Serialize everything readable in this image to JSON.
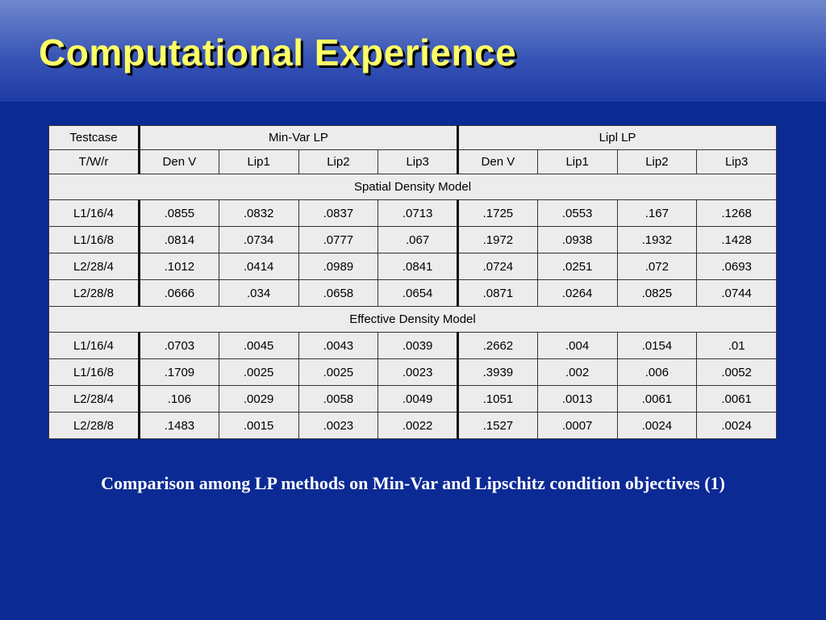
{
  "title": "Computational Experience",
  "table": {
    "header": [
      [
        "Testcase",
        "Min-Var LP",
        "Lipl LP"
      ],
      [
        "T/W/r",
        "Den V",
        "Lip1",
        "Lip2",
        "Lip3",
        "Den V",
        "Lip1",
        "Lip2",
        "Lip3"
      ]
    ],
    "sections": [
      {
        "title": "Spatial Density Model",
        "rows": [
          [
            "L1/16/4",
            ".0855",
            ".0832",
            ".0837",
            ".0713",
            ".1725",
            ".0553",
            ".167",
            ".1268"
          ],
          [
            "L1/16/8",
            ".0814",
            ".0734",
            ".0777",
            ".067",
            ".1972",
            ".0938",
            ".1932",
            ".1428"
          ],
          [
            "L2/28/4",
            ".1012",
            ".0414",
            ".0989",
            ".0841",
            ".0724",
            ".0251",
            ".072",
            ".0693"
          ],
          [
            "L2/28/8",
            ".0666",
            ".034",
            ".0658",
            ".0654",
            ".0871",
            ".0264",
            ".0825",
            ".0744"
          ]
        ]
      },
      {
        "title": "Effective Density Model",
        "rows": [
          [
            "L1/16/4",
            ".0703",
            ".0045",
            ".0043",
            ".0039",
            ".2662",
            ".004",
            ".0154",
            ".01"
          ],
          [
            "L1/16/8",
            ".1709",
            ".0025",
            ".0025",
            ".0023",
            ".3939",
            ".002",
            ".006",
            ".0052"
          ],
          [
            "L2/28/4",
            ".106",
            ".0029",
            ".0058",
            ".0049",
            ".1051",
            ".0013",
            ".0061",
            ".0061"
          ],
          [
            "L2/28/8",
            ".1483",
            ".0015",
            ".0023",
            ".0022",
            ".1527",
            ".0007",
            ".0024",
            ".0024"
          ]
        ]
      }
    ]
  },
  "caption": "Comparison among LP methods on Min-Var and Lipschitz condition objectives (1)"
}
